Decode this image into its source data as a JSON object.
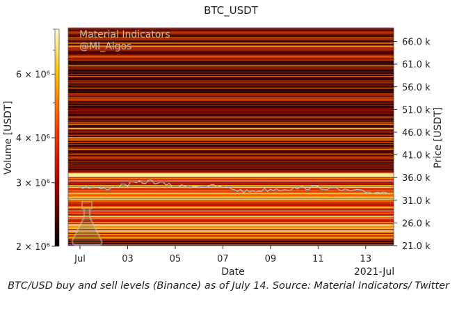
{
  "caption": "BTC/USD buy and sell levels (Binance) as of July 14. Source: Material Indicators/ Twitter",
  "watermark": {
    "line1": "Material Indicators",
    "line2": "@MI_Algos",
    "logo": "flask-logo"
  },
  "chart_data": {
    "type": "heatmap",
    "title": "BTC_USDT",
    "xlabel": "Date",
    "ylabel_right": "Price [USDT]",
    "colorbar_label": "Volume [USDT]",
    "colormap": "hot",
    "x_ticks": [
      "Jul",
      "03",
      "05",
      "07",
      "09",
      "11",
      "13"
    ],
    "x_offset_label": "2021-Jul",
    "x_range": [
      "2021-07-01",
      "2021-07-14"
    ],
    "y_ticks": [
      "21.0 k",
      "26.0 k",
      "31.0 k",
      "36.0 k",
      "41.0 k",
      "46.0 k",
      "51.0 k",
      "56.0 k",
      "61.0 k",
      "66.0 k"
    ],
    "y_tick_values": [
      21000,
      26000,
      31000,
      36000,
      41000,
      46000,
      51000,
      56000,
      61000,
      66000
    ],
    "y_range": [
      21000,
      69000
    ],
    "colorbar_ticks": [
      "2 × 10⁶",
      "3 × 10⁶",
      "4 × 10⁶",
      "6 × 10⁶"
    ],
    "colorbar_tick_values": [
      2000000,
      3000000,
      4000000,
      6000000
    ],
    "colorbar_scale": "log",
    "colorbar_range": [
      2000000,
      8000000
    ],
    "price_band": {
      "low": 31500,
      "high": 35500
    },
    "price_path": [
      {
        "date": "2021-07-01",
        "price": 34000
      },
      {
        "date": "2021-07-02",
        "price": 33500
      },
      {
        "date": "2021-07-03",
        "price": 34500
      },
      {
        "date": "2021-07-04",
        "price": 35200
      },
      {
        "date": "2021-07-05",
        "price": 34000
      },
      {
        "date": "2021-07-06",
        "price": 34200
      },
      {
        "date": "2021-07-07",
        "price": 33900
      },
      {
        "date": "2021-07-08",
        "price": 32900
      },
      {
        "date": "2021-07-09",
        "price": 33400
      },
      {
        "date": "2021-07-10",
        "price": 33600
      },
      {
        "date": "2021-07-11",
        "price": 33900
      },
      {
        "date": "2021-07-12",
        "price": 33200
      },
      {
        "date": "2021-07-13",
        "price": 32800
      },
      {
        "date": "2021-07-14",
        "price": 32700
      }
    ]
  }
}
